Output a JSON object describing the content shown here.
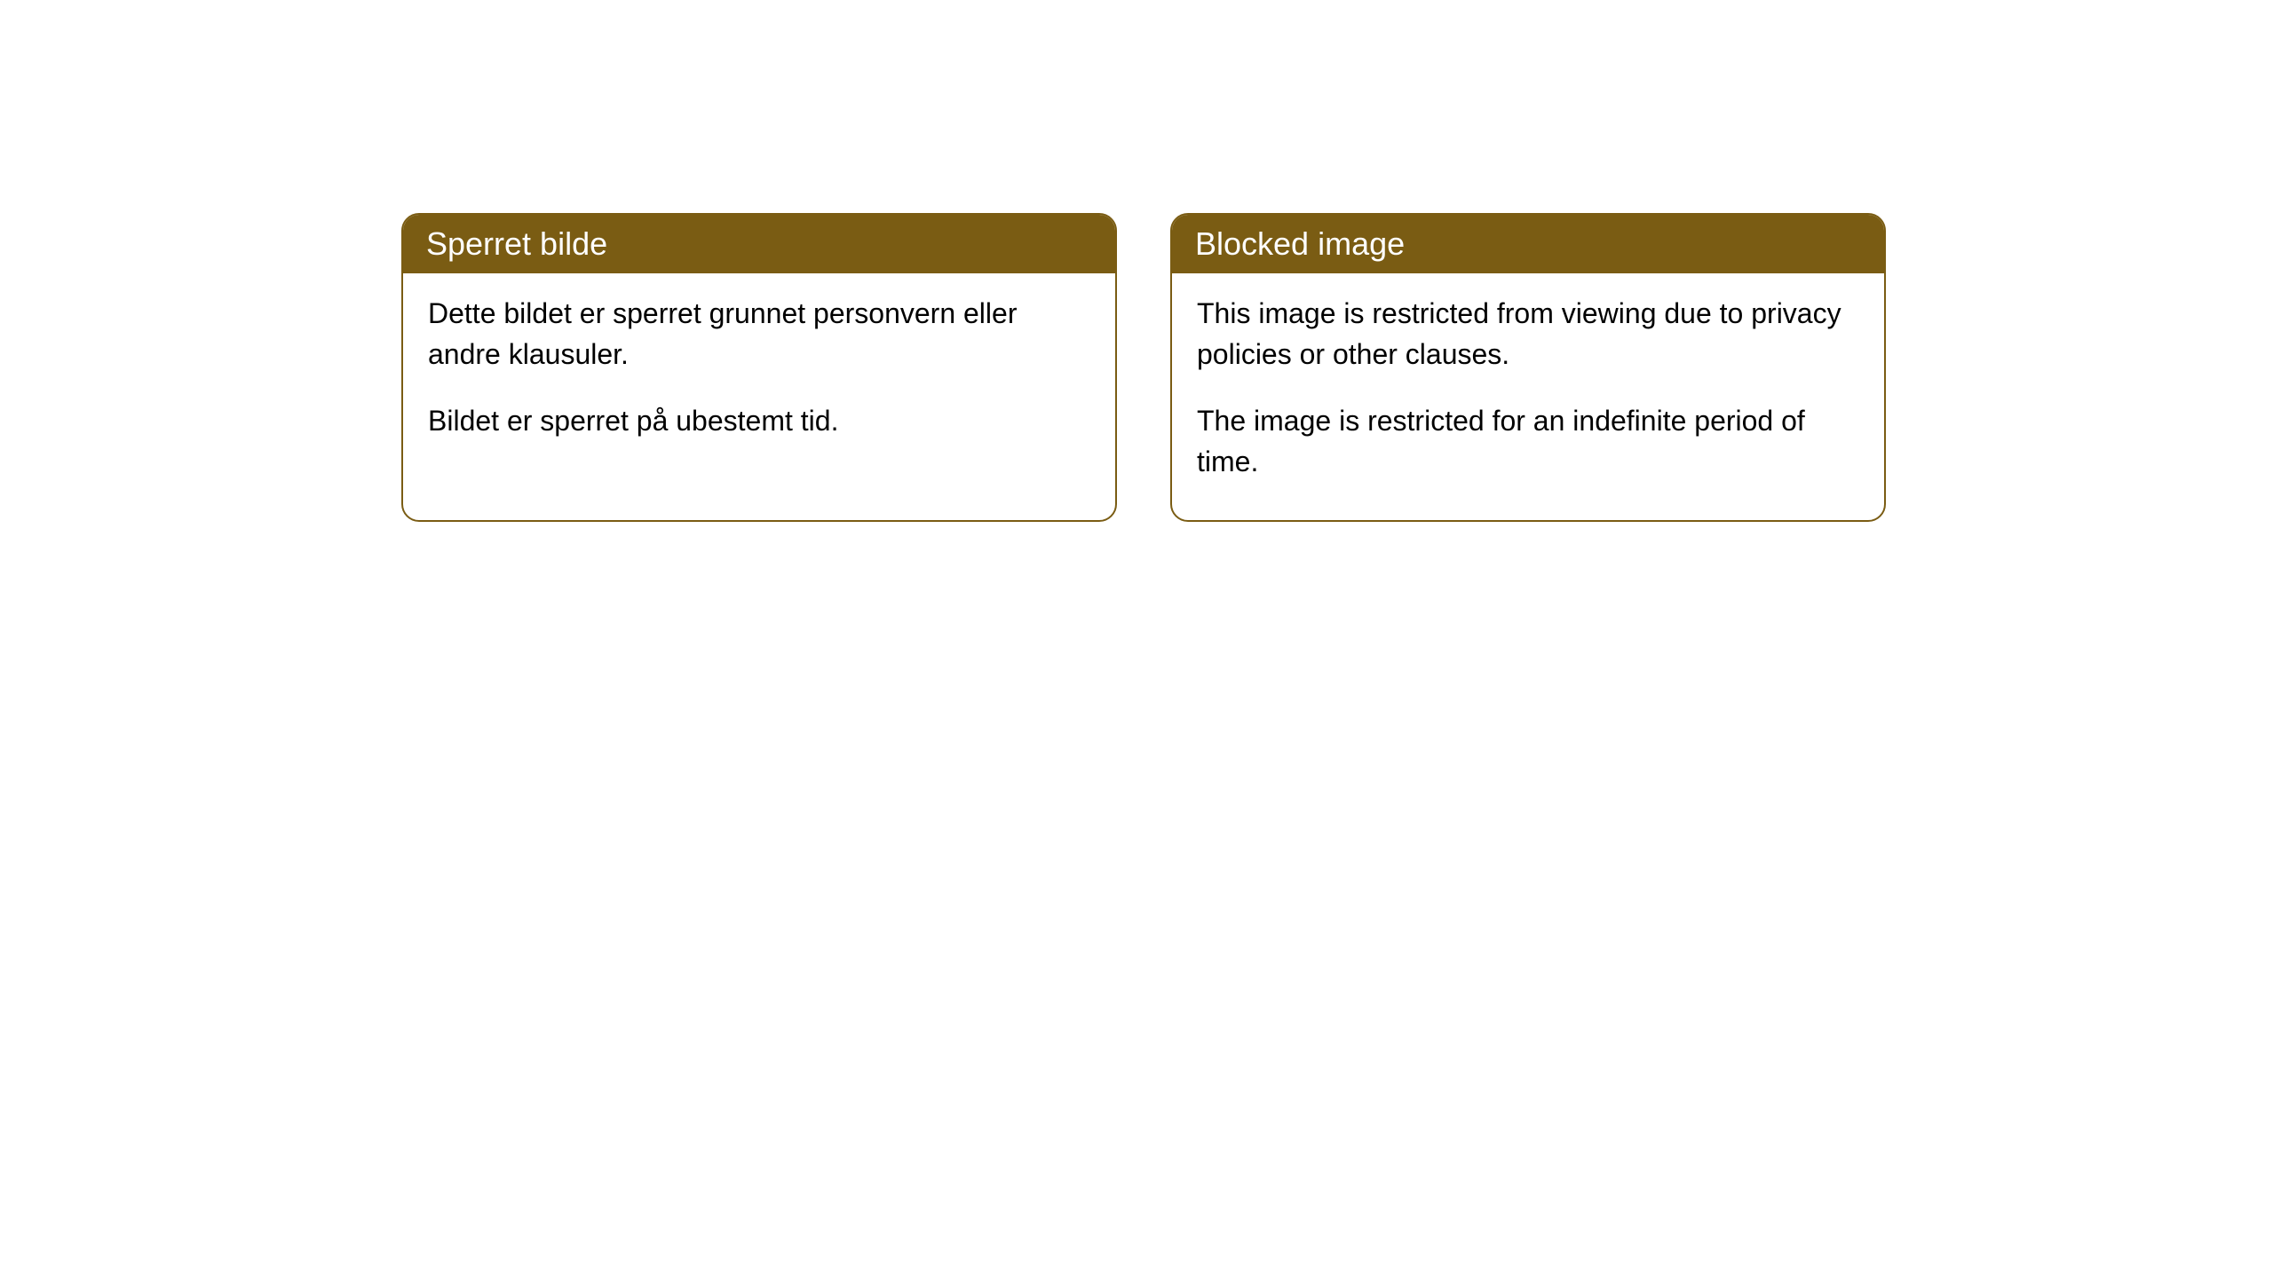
{
  "cards": [
    {
      "title": "Sperret bilde",
      "paragraph1": "Dette bildet er sperret grunnet personvern eller andre klausuler.",
      "paragraph2": "Bildet er sperret på ubestemt tid."
    },
    {
      "title": "Blocked image",
      "paragraph1": "This image is restricted from viewing due to privacy policies or other clauses.",
      "paragraph2": "The image is restricted for an indefinite period of time."
    }
  ],
  "style": {
    "header_background": "#7a5c13",
    "header_text_color": "#ffffff",
    "border_color": "#7a5c13",
    "body_background": "#ffffff",
    "body_text_color": "#000000",
    "border_radius": 20,
    "title_fontsize": 36,
    "body_fontsize": 32
  }
}
